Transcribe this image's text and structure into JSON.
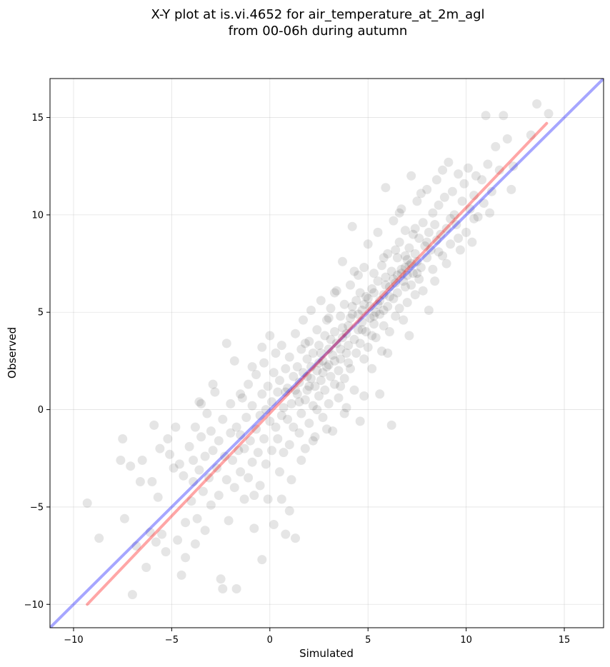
{
  "chart_data": {
    "type": "scatter",
    "title_lines": [
      "X-Y plot at is.vi.4652 for air_temperature_at_2m_agl",
      "from 00-06h during autumn"
    ],
    "xlabel": "Simulated",
    "ylabel": "Observed",
    "xlim": [
      -11.2,
      17.0
    ],
    "ylim": [
      -11.2,
      17.0
    ],
    "xticks": [
      -10,
      -5,
      0,
      5,
      10,
      15
    ],
    "yticks": [
      -10,
      -5,
      0,
      5,
      10,
      15
    ],
    "xtick_labels": [
      "−10",
      "−5",
      "0",
      "5",
      "10",
      "15"
    ],
    "ytick_labels": [
      "−10",
      "−5",
      "0",
      "5",
      "10",
      "15"
    ],
    "grid": true,
    "point_color": "#000000",
    "point_alpha": 0.1,
    "regression_line": {
      "color": "#ff0000",
      "alpha": 0.35,
      "x": [
        -9.3,
        14.1
      ],
      "y": [
        -10.0,
        14.7
      ]
    },
    "identity_line": {
      "color": "#0000ff",
      "alpha": 0.35,
      "x": [
        -11.2,
        17.0
      ],
      "y": [
        -11.2,
        17.0
      ]
    },
    "points": [
      [
        -9.3,
        -4.8
      ],
      [
        -8.7,
        -6.6
      ],
      [
        -7.6,
        -2.6
      ],
      [
        -7.5,
        -1.5
      ],
      [
        -7.4,
        -5.6
      ],
      [
        -7.1,
        -2.9
      ],
      [
        -7.0,
        -9.5
      ],
      [
        -6.8,
        -7.0
      ],
      [
        -6.6,
        -3.7
      ],
      [
        -6.5,
        -2.6
      ],
      [
        -6.3,
        -8.1
      ],
      [
        -6.1,
        -6.3
      ],
      [
        -6.0,
        -3.7
      ],
      [
        -5.9,
        -0.8
      ],
      [
        -5.8,
        -6.8
      ],
      [
        -5.7,
        -4.5
      ],
      [
        -5.6,
        -2.0
      ],
      [
        -5.5,
        -6.4
      ],
      [
        -5.3,
        -7.3
      ],
      [
        -5.2,
        -1.5
      ],
      [
        -5.1,
        -2.3
      ],
      [
        -4.9,
        -3.0
      ],
      [
        -4.8,
        -0.9
      ],
      [
        -4.7,
        -6.7
      ],
      [
        -4.6,
        -2.8
      ],
      [
        -4.5,
        -8.5
      ],
      [
        -4.4,
        -3.4
      ],
      [
        -4.3,
        -5.8
      ],
      [
        -4.3,
        -7.6
      ],
      [
        -4.1,
        -1.9
      ],
      [
        -4.0,
        -4.7
      ],
      [
        -3.9,
        -3.7
      ],
      [
        -3.9,
        -2.6
      ],
      [
        -3.8,
        -6.9
      ],
      [
        -3.8,
        -0.9
      ],
      [
        -3.7,
        -5.6
      ],
      [
        -3.6,
        -3.1
      ],
      [
        -3.6,
        0.4
      ],
      [
        -3.5,
        -1.4
      ],
      [
        -3.4,
        -4.2
      ],
      [
        -3.3,
        -2.4
      ],
      [
        -3.3,
        -6.2
      ],
      [
        -3.2,
        -0.2
      ],
      [
        -3.1,
        -3.5
      ],
      [
        -3.0,
        -1.1
      ],
      [
        -3.0,
        -4.9
      ],
      [
        -2.9,
        -2.1
      ],
      [
        -2.8,
        0.9
      ],
      [
        -2.7,
        -3.0
      ],
      [
        -2.6,
        -1.6
      ],
      [
        -2.6,
        -4.4
      ],
      [
        -2.5,
        -8.7
      ],
      [
        -2.4,
        -9.2
      ],
      [
        -2.4,
        -0.5
      ],
      [
        -2.3,
        -2.4
      ],
      [
        -2.2,
        -3.6
      ],
      [
        -2.1,
        -5.7
      ],
      [
        -2.0,
        -1.2
      ],
      [
        -2.0,
        0.3
      ],
      [
        -1.9,
        -2.6
      ],
      [
        -1.8,
        -4.0
      ],
      [
        -1.7,
        -0.9
      ],
      [
        -1.7,
        -9.2
      ],
      [
        -1.6,
        -2.1
      ],
      [
        -1.5,
        -1.3
      ],
      [
        -1.5,
        -3.2
      ],
      [
        -1.4,
        0.6
      ],
      [
        -1.3,
        -4.6
      ],
      [
        -1.3,
        -2.0
      ],
      [
        -1.2,
        -0.4
      ],
      [
        -1.1,
        1.3
      ],
      [
        -1.1,
        -3.5
      ],
      [
        -1.0,
        -1.6
      ],
      [
        -0.9,
        -2.7
      ],
      [
        -0.9,
        0.2
      ],
      [
        -0.8,
        -6.1
      ],
      [
        -0.8,
        -4.4
      ],
      [
        -0.7,
        -1.0
      ],
      [
        -0.7,
        1.8
      ],
      [
        -0.6,
        -2.2
      ],
      [
        -0.5,
        -0.3
      ],
      [
        -0.5,
        -3.9
      ],
      [
        -0.4,
        0.8
      ],
      [
        -0.4,
        -7.7
      ],
      [
        -0.3,
        -1.5
      ],
      [
        -0.3,
        2.4
      ],
      [
        -0.2,
        -2.8
      ],
      [
        -0.2,
        0.0
      ],
      [
        -0.1,
        -4.6
      ],
      [
        -0.1,
        1.2
      ],
      [
        0.0,
        -0.6
      ],
      [
        0.0,
        3.8
      ],
      [
        0.1,
        -2.1
      ],
      [
        0.1,
        0.4
      ],
      [
        0.2,
        1.9
      ],
      [
        0.2,
        -5.9
      ],
      [
        0.3,
        -0.9
      ],
      [
        0.3,
        2.9
      ],
      [
        0.4,
        -1.5
      ],
      [
        0.4,
        0.9
      ],
      [
        0.5,
        -3.2
      ],
      [
        0.5,
        1.5
      ],
      [
        0.6,
        -0.3
      ],
      [
        0.6,
        3.3
      ],
      [
        0.7,
        0.1
      ],
      [
        0.7,
        -2.2
      ],
      [
        0.8,
        2.1
      ],
      [
        0.8,
        -6.4
      ],
      [
        0.9,
        -0.5
      ],
      [
        0.9,
        1.1
      ],
      [
        1.0,
        -1.8
      ],
      [
        1.0,
        2.7
      ],
      [
        1.1,
        0.3
      ],
      [
        1.1,
        -3.6
      ],
      [
        1.2,
        1.7
      ],
      [
        1.2,
        -0.9
      ],
      [
        1.3,
        3.9
      ],
      [
        1.3,
        -6.6
      ],
      [
        1.4,
        0.8
      ],
      [
        1.4,
        2.2
      ],
      [
        1.5,
        -1.2
      ],
      [
        1.5,
        1.4
      ],
      [
        1.6,
        3.1
      ],
      [
        1.6,
        -0.2
      ],
      [
        1.7,
        4.6
      ],
      [
        1.7,
        1.9
      ],
      [
        1.8,
        0.5
      ],
      [
        1.8,
        -2.0
      ],
      [
        1.9,
        2.6
      ],
      [
        1.9,
        1.0
      ],
      [
        2.0,
        3.5
      ],
      [
        2.0,
        -0.7
      ],
      [
        2.1,
        1.6
      ],
      [
        2.1,
        5.1
      ],
      [
        2.2,
        0.2
      ],
      [
        2.2,
        2.9
      ],
      [
        2.3,
        1.2
      ],
      [
        2.3,
        -1.4
      ],
      [
        2.4,
        4.1
      ],
      [
        2.4,
        2.0
      ],
      [
        2.5,
        0.7
      ],
      [
        2.5,
        3.3
      ],
      [
        2.6,
        5.6
      ],
      [
        2.6,
        1.5
      ],
      [
        2.7,
        -0.4
      ],
      [
        2.7,
        2.5
      ],
      [
        2.8,
        3.8
      ],
      [
        2.8,
        1.0
      ],
      [
        2.9,
        4.6
      ],
      [
        2.9,
        2.2
      ],
      [
        3.0,
        0.3
      ],
      [
        3.0,
        3.1
      ],
      [
        3.1,
        5.2
      ],
      [
        3.1,
        1.7
      ],
      [
        3.2,
        -1.1
      ],
      [
        3.2,
        2.8
      ],
      [
        3.3,
        4.0
      ],
      [
        3.3,
        1.3
      ],
      [
        3.4,
        6.1
      ],
      [
        3.4,
        3.4
      ],
      [
        3.5,
        2.0
      ],
      [
        3.5,
        0.6
      ],
      [
        3.6,
        4.8
      ],
      [
        3.6,
        2.6
      ],
      [
        3.7,
        7.6
      ],
      [
        3.7,
        3.7
      ],
      [
        3.8,
        1.6
      ],
      [
        3.8,
        5.4
      ],
      [
        3.9,
        2.9
      ],
      [
        3.9,
        0.1
      ],
      [
        4.0,
        4.3
      ],
      [
        4.0,
        3.3
      ],
      [
        4.1,
        6.4
      ],
      [
        4.1,
        2.1
      ],
      [
        4.2,
        9.4
      ],
      [
        4.2,
        4.9
      ],
      [
        4.3,
        3.6
      ],
      [
        4.3,
        1.0
      ],
      [
        4.4,
        5.6
      ],
      [
        4.4,
        2.9
      ],
      [
        4.5,
        4.1
      ],
      [
        4.5,
        6.9
      ],
      [
        4.6,
        3.4
      ],
      [
        4.6,
        -0.6
      ],
      [
        4.7,
        5.1
      ],
      [
        4.7,
        4.5
      ],
      [
        4.8,
        2.6
      ],
      [
        4.8,
        7.3
      ],
      [
        4.9,
        4.0
      ],
      [
        4.9,
        5.8
      ],
      [
        5.0,
        3.2
      ],
      [
        5.0,
        8.5
      ],
      [
        5.1,
        4.7
      ],
      [
        5.1,
        5.3
      ],
      [
        5.2,
        2.1
      ],
      [
        5.2,
        6.2
      ],
      [
        5.3,
        4.4
      ],
      [
        5.3,
        7.0
      ],
      [
        5.4,
        5.0
      ],
      [
        5.4,
        3.7
      ],
      [
        5.5,
        6.6
      ],
      [
        5.5,
        9.1
      ],
      [
        5.6,
        4.9
      ],
      [
        5.6,
        5.6
      ],
      [
        5.7,
        3.0
      ],
      [
        5.7,
        7.4
      ],
      [
        5.8,
        5.9
      ],
      [
        5.8,
        4.3
      ],
      [
        5.9,
        6.8
      ],
      [
        5.9,
        11.4
      ],
      [
        6.0,
        5.3
      ],
      [
        6.0,
        8.0
      ],
      [
        6.1,
        6.3
      ],
      [
        6.1,
        4.0
      ],
      [
        6.2,
        7.1
      ],
      [
        6.2,
        -0.8
      ],
      [
        6.3,
        5.7
      ],
      [
        6.3,
        9.7
      ],
      [
        6.4,
        6.5
      ],
      [
        6.4,
        4.8
      ],
      [
        6.5,
        7.8
      ],
      [
        6.5,
        6.0
      ],
      [
        6.6,
        8.6
      ],
      [
        6.6,
        5.2
      ],
      [
        6.7,
        7.2
      ],
      [
        6.7,
        10.3
      ],
      [
        6.8,
        6.6
      ],
      [
        6.8,
        4.6
      ],
      [
        6.9,
        7.9
      ],
      [
        6.9,
        9.2
      ],
      [
        7.0,
        6.9
      ],
      [
        7.0,
        5.5
      ],
      [
        7.1,
        8.3
      ],
      [
        7.1,
        7.4
      ],
      [
        7.2,
        6.4
      ],
      [
        7.2,
        12.0
      ],
      [
        7.3,
        7.0
      ],
      [
        7.3,
        9.0
      ],
      [
        7.4,
        5.9
      ],
      [
        7.4,
        8.0
      ],
      [
        7.5,
        7.6
      ],
      [
        7.5,
        10.7
      ],
      [
        7.6,
        6.7
      ],
      [
        7.6,
        8.8
      ],
      [
        7.7,
        7.3
      ],
      [
        7.8,
        9.6
      ],
      [
        7.8,
        6.1
      ],
      [
        7.9,
        8.4
      ],
      [
        8.0,
        7.8
      ],
      [
        8.0,
        11.3
      ],
      [
        8.1,
        9.1
      ],
      [
        8.1,
        5.1
      ],
      [
        8.2,
        8.2
      ],
      [
        8.3,
        10.1
      ],
      [
        8.3,
        7.2
      ],
      [
        8.4,
        9.5
      ],
      [
        8.5,
        11.8
      ],
      [
        8.5,
        8.7
      ],
      [
        8.6,
        10.5
      ],
      [
        8.7,
        9.0
      ],
      [
        8.8,
        12.3
      ],
      [
        8.8,
        7.9
      ],
      [
        8.9,
        10.9
      ],
      [
        9.0,
        9.3
      ],
      [
        9.1,
        12.7
      ],
      [
        9.2,
        8.5
      ],
      [
        9.3,
        11.2
      ],
      [
        9.4,
        10.0
      ],
      [
        9.5,
        9.5
      ],
      [
        9.6,
        12.1
      ],
      [
        9.7,
        8.2
      ],
      [
        9.8,
        10.7
      ],
      [
        9.9,
        11.6
      ],
      [
        10.0,
        9.1
      ],
      [
        10.1,
        12.4
      ],
      [
        10.2,
        10.3
      ],
      [
        10.3,
        8.6
      ],
      [
        10.4,
        11.0
      ],
      [
        10.5,
        12.0
      ],
      [
        10.6,
        9.9
      ],
      [
        10.8,
        11.8
      ],
      [
        10.9,
        10.6
      ],
      [
        11.0,
        15.1
      ],
      [
        11.1,
        12.6
      ],
      [
        11.3,
        11.2
      ],
      [
        11.5,
        13.5
      ],
      [
        11.7,
        12.3
      ],
      [
        11.9,
        15.1
      ],
      [
        12.1,
        13.9
      ],
      [
        12.3,
        11.3
      ],
      [
        12.4,
        12.5
      ],
      [
        13.3,
        14.1
      ],
      [
        13.6,
        15.7
      ],
      [
        14.2,
        15.2
      ],
      [
        -3.5,
        0.3
      ],
      [
        -2.9,
        1.3
      ],
      [
        -2.2,
        3.4
      ],
      [
        -1.8,
        2.5
      ],
      [
        -1.5,
        0.8
      ],
      [
        -0.9,
        2.2
      ],
      [
        -0.4,
        3.2
      ],
      [
        0.6,
        -4.6
      ],
      [
        1.0,
        -5.2
      ],
      [
        1.6,
        -2.6
      ],
      [
        2.2,
        -1.6
      ],
      [
        2.9,
        -1.0
      ],
      [
        3.3,
        6.0
      ],
      [
        3.8,
        -0.2
      ],
      [
        4.3,
        7.1
      ],
      [
        4.8,
        0.7
      ],
      [
        5.6,
        0.8
      ],
      [
        6.0,
        2.9
      ],
      [
        6.6,
        10.1
      ],
      [
        7.1,
        3.8
      ],
      [
        7.7,
        11.1
      ],
      [
        8.4,
        6.6
      ],
      [
        9.0,
        7.5
      ],
      [
        9.6,
        8.8
      ],
      [
        10.4,
        9.8
      ],
      [
        11.2,
        10.1
      ],
      [
        1.8,
        3.4
      ],
      [
        2.4,
        0.0
      ],
      [
        3.0,
        4.7
      ],
      [
        3.6,
        1.2
      ],
      [
        4.0,
        2.4
      ],
      [
        4.6,
        6.0
      ],
      [
        5.2,
        3.8
      ],
      [
        5.8,
        7.8
      ],
      [
        6.4,
        8.2
      ],
      [
        6.9,
        6.3
      ],
      [
        7.4,
        9.3
      ],
      [
        2.1,
        2.2
      ],
      [
        2.7,
        1.9
      ],
      [
        3.3,
        2.5
      ],
      [
        3.9,
        3.9
      ],
      [
        4.5,
        4.9
      ],
      [
        5.0,
        5.7
      ],
      [
        5.5,
        5.4
      ],
      [
        6.1,
        5.8
      ],
      [
        6.7,
        7.0
      ],
      [
        7.2,
        7.5
      ],
      [
        1.5,
        0.4
      ],
      [
        2.0,
        1.2
      ],
      [
        2.6,
        2.9
      ],
      [
        3.1,
        3.6
      ],
      [
        3.7,
        4.2
      ],
      [
        4.2,
        5.3
      ],
      [
        4.8,
        5.4
      ],
      [
        5.3,
        4.8
      ],
      [
        5.9,
        6.4
      ],
      [
        6.5,
        6.9
      ],
      [
        7.0,
        7.7
      ],
      [
        0.8,
        0.9
      ],
      [
        1.3,
        1.0
      ],
      [
        1.9,
        1.7
      ],
      [
        2.5,
        2.4
      ],
      [
        3.0,
        2.3
      ],
      [
        3.6,
        3.1
      ],
      [
        4.1,
        4.7
      ],
      [
        4.7,
        4.1
      ],
      [
        5.3,
        6.0
      ],
      [
        5.8,
        5.1
      ],
      [
        6.3,
        6.7
      ],
      [
        6.9,
        7.3
      ],
      [
        7.5,
        7.0
      ],
      [
        8.0,
        8.6
      ],
      [
        8.6,
        8.1
      ],
      [
        9.2,
        9.8
      ]
    ]
  }
}
